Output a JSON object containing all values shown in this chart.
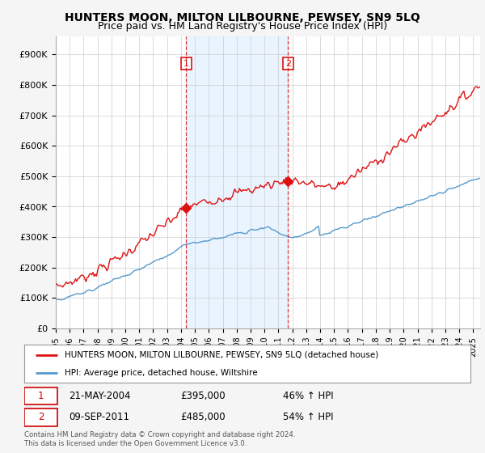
{
  "title": "HUNTERS MOON, MILTON LILBOURNE, PEWSEY, SN9 5LQ",
  "subtitle": "Price paid vs. HM Land Registry's House Price Index (HPI)",
  "ylabel_ticks": [
    "£0",
    "£100K",
    "£200K",
    "£300K",
    "£400K",
    "£500K",
    "£600K",
    "£700K",
    "£800K",
    "£900K"
  ],
  "ytick_values": [
    0,
    100000,
    200000,
    300000,
    400000,
    500000,
    600000,
    700000,
    800000,
    900000
  ],
  "ylim": [
    0,
    960000
  ],
  "xlim_start": 1995.0,
  "xlim_end": 2025.5,
  "fig_bg_color": "#f5f5f5",
  "plot_bg_color": "#ffffff",
  "shade_color": "#ddeeff",
  "grid_color": "#cccccc",
  "red_line_color": "#dd1111",
  "blue_line_color": "#5599cc",
  "sale1_x": 2004.38,
  "sale1_y": 395000,
  "sale2_x": 2011.69,
  "sale2_y": 485000,
  "legend_label_red": "HUNTERS MOON, MILTON LILBOURNE, PEWSEY, SN9 5LQ (detached house)",
  "legend_label_blue": "HPI: Average price, detached house, Wiltshire",
  "annotation1_date": "21-MAY-2004",
  "annotation1_price": "£395,000",
  "annotation1_hpi": "46% ↑ HPI",
  "annotation2_date": "09-SEP-2011",
  "annotation2_price": "£485,000",
  "annotation2_hpi": "54% ↑ HPI",
  "footer": "Contains HM Land Registry data © Crown copyright and database right 2024.\nThis data is licensed under the Open Government Licence v3.0.",
  "title_fontsize": 10,
  "subtitle_fontsize": 9
}
